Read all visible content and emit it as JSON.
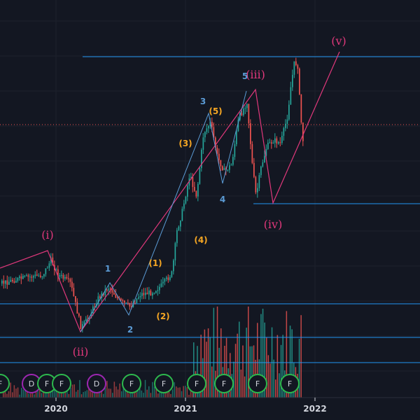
{
  "chart_data": {
    "type": "candlestick",
    "x_axis": {
      "labels": [
        "2020",
        "2021",
        "2022"
      ]
    },
    "wave_labels": {
      "roman": [
        "(i)",
        "(ii)",
        "(iii)",
        "(iv)",
        "(v)"
      ],
      "orange": [
        "(1)",
        "(2)",
        "(3)",
        "(4)",
        "(5)"
      ],
      "blue": [
        "1",
        "2",
        "3",
        "4",
        "5"
      ]
    },
    "event_markers": [
      "F",
      "D",
      "F",
      "F",
      "D",
      "F",
      "F",
      "F",
      "F",
      "F"
    ],
    "colors": {
      "background": "#131722",
      "up_candle": "#26a69a",
      "down_candle": "#ef5350",
      "wave_line_primary": "#e0387b",
      "wave_line_secondary": "#5b9bd5",
      "horizontal_line": "#2196f3",
      "price_line": "#ef5350",
      "marker_green": "#2db84d",
      "marker_purple": "#9c27b0"
    }
  }
}
